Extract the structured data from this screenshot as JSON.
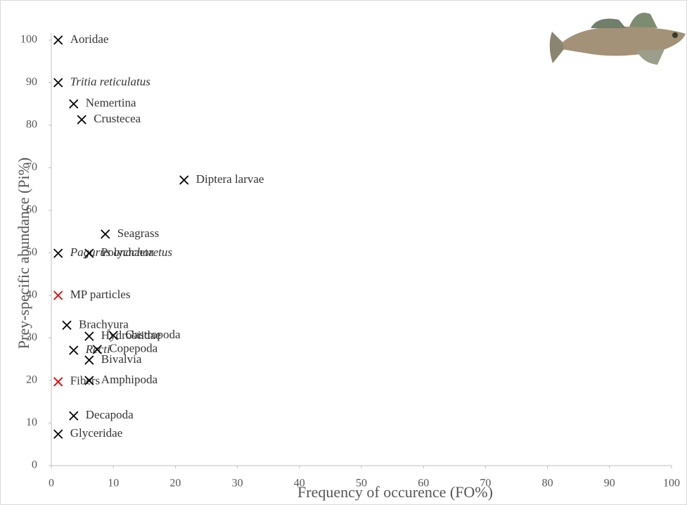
{
  "chart_data": {
    "type": "scatter",
    "x_label": "Frequency of occurence (FO%)",
    "y_label": "Prey-specific abundance (Pi%)",
    "xlim": [
      0,
      100
    ],
    "ylim": [
      0,
      100
    ],
    "xticks": [
      0,
      10,
      20,
      30,
      40,
      50,
      60,
      70,
      80,
      90,
      100
    ],
    "yticks": [
      0,
      10,
      20,
      30,
      40,
      50,
      60,
      70,
      80,
      90,
      100
    ],
    "grid": false,
    "points": [
      {
        "label": "Aoridae",
        "x": 1.1,
        "y": 100,
        "color": "#000000",
        "italic": false
      },
      {
        "label": "Tritia reticulatus",
        "x": 1.1,
        "y": 90,
        "color": "#000000",
        "italic": true
      },
      {
        "label": "Nemertina",
        "x": 3.6,
        "y": 85,
        "color": "#000000",
        "italic": false
      },
      {
        "label": "Crustecea",
        "x": 4.9,
        "y": 81.3,
        "color": "#000000",
        "italic": false
      },
      {
        "label": "Diptera larvae",
        "x": 21.4,
        "y": 67.1,
        "color": "#000000",
        "italic": false
      },
      {
        "label": "Seagrass",
        "x": 8.7,
        "y": 54.4,
        "color": "#000000",
        "italic": false
      },
      {
        "label": "Pagurus anachoretus",
        "x": 1.1,
        "y": 49.9,
        "color": "#000000",
        "italic": true
      },
      {
        "label": "Polychaeta",
        "x": 6.1,
        "y": 49.9,
        "color": "#000000",
        "italic": false
      },
      {
        "label": "MP particles",
        "x": 1.1,
        "y": 40,
        "color": "#e00000",
        "italic": false
      },
      {
        "label": "Brachyura",
        "x": 2.5,
        "y": 33,
        "color": "#000000",
        "italic": false
      },
      {
        "label": "Gastropoda",
        "x": 10,
        "y": 30.6,
        "color": "#000000",
        "italic": false
      },
      {
        "label": "Hydrobiidae",
        "x": 6.1,
        "y": 30.4,
        "color": "#000000",
        "italic": false
      },
      {
        "label": "Recti",
        "x": 3.6,
        "y": 27.1,
        "color": "#000000",
        "italic": true
      },
      {
        "label": "Copepoda",
        "x": 7.4,
        "y": 27.3,
        "color": "#000000",
        "italic": false
      },
      {
        "label": "Bivalvia",
        "x": 6.1,
        "y": 24.8,
        "color": "#000000",
        "italic": false
      },
      {
        "label": "Fibers",
        "x": 1.1,
        "y": 19.7,
        "color": "#e00000",
        "italic": false
      },
      {
        "label": "Amphipoda",
        "x": 6.1,
        "y": 20,
        "color": "#000000",
        "italic": false
      },
      {
        "label": "Decapoda",
        "x": 3.6,
        "y": 11.7,
        "color": "#000000",
        "italic": false
      },
      {
        "label": "Glyceridae",
        "x": 1.1,
        "y": 7.4,
        "color": "#000000",
        "italic": false
      }
    ]
  }
}
